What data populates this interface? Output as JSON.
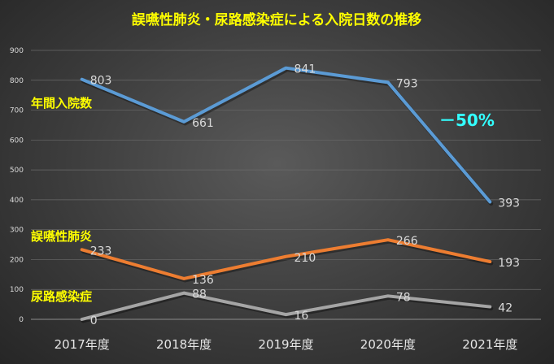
{
  "chart_data": {
    "type": "line",
    "title": "誤嚥性肺炎・尿路感染症による入院日数の推移",
    "categories": [
      "2017年度",
      "2018年度",
      "2019年度",
      "2020年度",
      "2021年度"
    ],
    "ylim": [
      0,
      900
    ],
    "yticks": [
      "0",
      "100",
      "200",
      "300",
      "400",
      "500",
      "600",
      "700",
      "800",
      "900"
    ],
    "series": [
      {
        "name": "年間入院数",
        "values": [
          803,
          661,
          841,
          793,
          393
        ],
        "labels": [
          "803",
          "661",
          "841",
          "793",
          "393"
        ],
        "color": "#5b9bd5"
      },
      {
        "name": "誤嚥性肺炎",
        "values": [
          233,
          136,
          210,
          266,
          193
        ],
        "labels": [
          "233",
          "136",
          "210",
          "266",
          "193"
        ],
        "color": "#ed7d31"
      },
      {
        "name": "尿路感染症",
        "values": [
          0,
          88,
          16,
          78,
          42
        ],
        "labels": [
          "0",
          "88",
          "16",
          "78",
          "42"
        ],
        "color": "#a5a5a5"
      }
    ],
    "annotation": {
      "text": "－50%",
      "color": "#33ffff"
    },
    "title_color": "#ffff00",
    "series_label_color": "#ffff00",
    "grid": true
  }
}
